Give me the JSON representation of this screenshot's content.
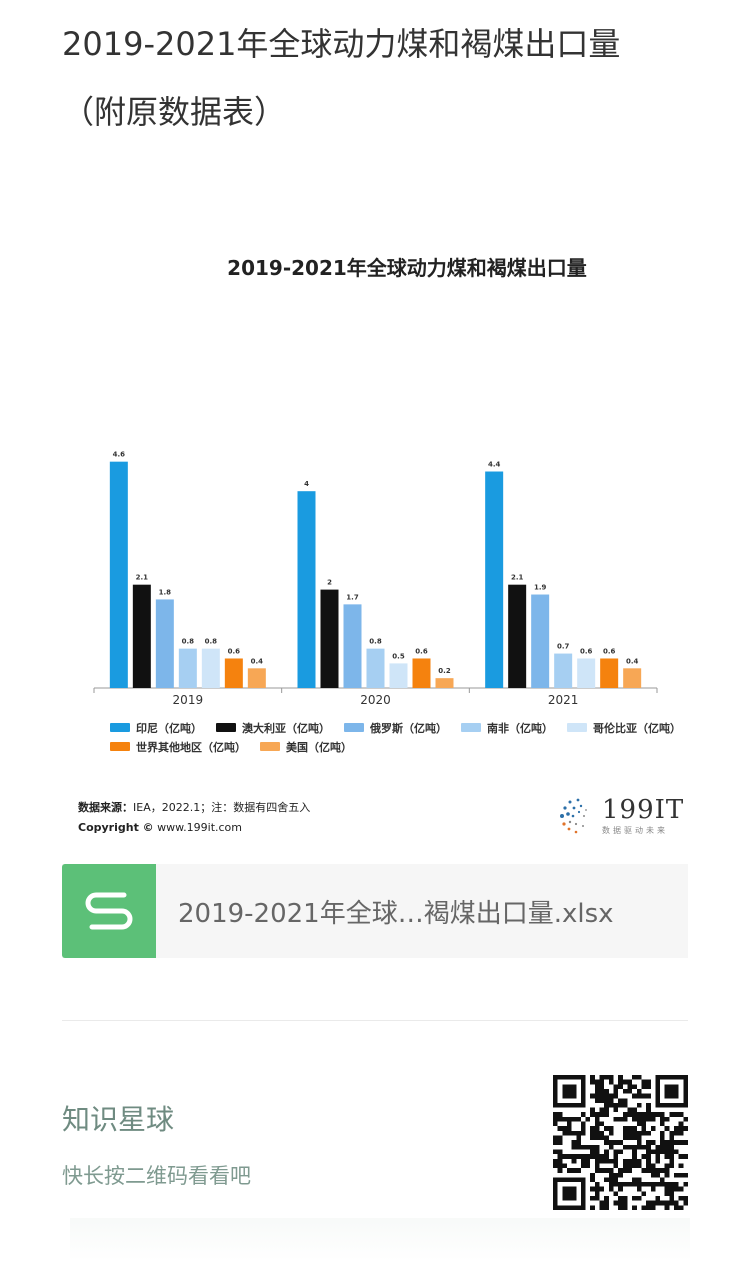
{
  "post": {
    "title_line1": "2019-2021年全球动力煤和褐煤出口量",
    "title_line2": "（附原数据表）"
  },
  "chart": {
    "title": "2019-2021年全球动力煤和褐煤出口量",
    "source_label": "数据来源：",
    "source_text": "IEA，2022.1；注：数据有四舍五入",
    "copyright_label": "Copyright ©",
    "copyright_text": "www.199it.com",
    "logo_text": "199IT",
    "logo_sub": "数据驱动未来"
  },
  "chart_data": {
    "type": "bar",
    "title": "2019-2021年全球动力煤和褐煤出口量",
    "categories": [
      "2019",
      "2020",
      "2021"
    ],
    "series": [
      {
        "name": "印尼（亿吨）",
        "color": "#1a9be0",
        "values": [
          4.6,
          4,
          4.4
        ]
      },
      {
        "name": "澳大利亚（亿吨）",
        "color": "#111111",
        "values": [
          2.1,
          2,
          2.1
        ]
      },
      {
        "name": "俄罗斯（亿吨）",
        "color": "#7db6ea",
        "values": [
          1.8,
          1.7,
          1.9
        ]
      },
      {
        "name": "南非（亿吨）",
        "color": "#a6cff2",
        "values": [
          0.8,
          0.8,
          0.7
        ]
      },
      {
        "name": "哥伦比亚（亿吨）",
        "color": "#cfe5f8",
        "values": [
          0.8,
          0.5,
          0.6
        ]
      },
      {
        "name": "世界其他地区（亿吨）",
        "color": "#f5820e",
        "values": [
          0.6,
          0.6,
          0.6
        ]
      },
      {
        "name": "美国（亿吨）",
        "color": "#f7a755",
        "values": [
          0.4,
          0.2,
          0.4
        ]
      }
    ],
    "ylim": [
      0,
      5
    ],
    "grid": false,
    "legend_position": "bottom"
  },
  "attachment": {
    "file_name": "2019-2021年全球…褐煤出口量.xlsx",
    "icon": "spreadsheet-s-icon"
  },
  "planet": {
    "title": "知识星球",
    "hint": "快长按二维码看看吧"
  },
  "colors": {
    "file_icon_bg": "#5cc078",
    "planet_text": "#6f8b81"
  }
}
